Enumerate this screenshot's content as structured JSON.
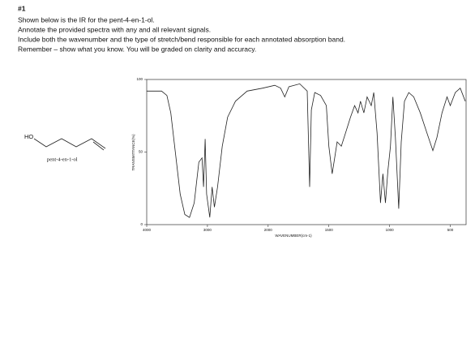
{
  "header": {
    "number": "#1",
    "lines": [
      "Shown below is the IR for the pent-4-en-1-ol.",
      "Annotate the provided spectra with any and all relevant signals.",
      "Include both the wavenumber and the type of stretch/bend responsible for each annotated absorption band.",
      "Remember – show what you know. You will be graded on clarity and accuracy."
    ]
  },
  "molecule": {
    "atom": "HO",
    "name": "pent-4-en-1-ol"
  },
  "chart_data": {
    "type": "line",
    "xlabel": "WAVENUMBER(cm-1)",
    "ylabel": "TRANSMITTANCE(%)",
    "xlim": [
      4000,
      370
    ],
    "ylim": [
      0,
      100
    ],
    "xticks": [
      4000,
      3000,
      2000,
      1500,
      1000,
      500
    ],
    "yticks": [
      0,
      50,
      100
    ],
    "x": [
      4000,
      3756,
      3667,
      3603,
      3526,
      3449,
      3372,
      3295,
      3218,
      3141,
      3090,
      3064,
      3038,
      3013,
      2962,
      2923,
      2885,
      2833,
      2756,
      2667,
      2538,
      2346,
      2090,
      1945,
      1897,
      1863,
      1829,
      1740,
      1678,
      1658,
      1644,
      1616,
      1568,
      1521,
      1500,
      1473,
      1452,
      1432,
      1397,
      1363,
      1322,
      1288,
      1260,
      1240,
      1212,
      1185,
      1151,
      1130,
      1103,
      1075,
      1055,
      1034,
      1014,
      993,
      973,
      952,
      925,
      904,
      877,
      842,
      801,
      747,
      692,
      644,
      610,
      568,
      527,
      500,
      459,
      418,
      377
    ],
    "series": [
      {
        "color": "#222222",
        "values": [
          92,
          92,
          89,
          77,
          49,
          21,
          7,
          5,
          15,
          43,
          46,
          26,
          59,
          21,
          5,
          26,
          12,
          26,
          54,
          74,
          85,
          92,
          94,
          96,
          94,
          88,
          95,
          97,
          92,
          26,
          79,
          91,
          89,
          82,
          54,
          35,
          46,
          57,
          54,
          63,
          74,
          82,
          77,
          85,
          77,
          88,
          82,
          91,
          63,
          15,
          35,
          15,
          37,
          54,
          88,
          60,
          11,
          57,
          85,
          91,
          88,
          77,
          63,
          51,
          60,
          77,
          88,
          82,
          91,
          94,
          85
        ]
      }
    ]
  }
}
